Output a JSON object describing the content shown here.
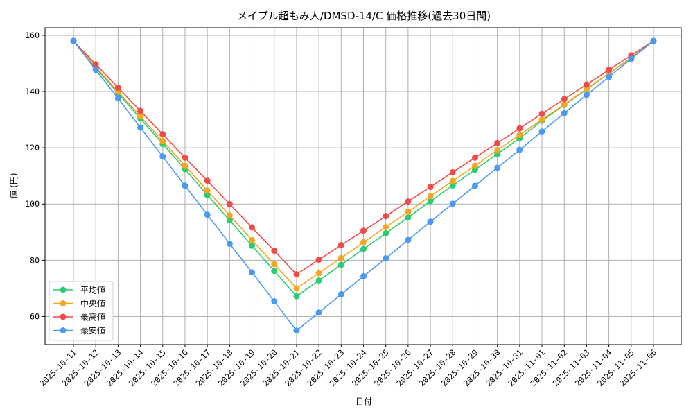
{
  "chart_data": {
    "type": "line",
    "title": "メイプル超もみ人/DMSD-14/C 価格推移(過去30日間)",
    "xlabel": "日付",
    "ylabel": "値 (円)",
    "ylim": [
      50,
      162.7
    ],
    "yticks": [
      60,
      80,
      100,
      120,
      140,
      160
    ],
    "grid": true,
    "legend_position": "lower left",
    "x": [
      "2025-10-11",
      "2025-10-12",
      "2025-10-13",
      "2025-10-14",
      "2025-10-15",
      "2025-10-16",
      "2025-10-17",
      "2025-10-18",
      "2025-10-19",
      "2025-10-20",
      "2025-10-21",
      "2025-10-22",
      "2025-10-23",
      "2025-10-24",
      "2025-10-25",
      "2025-10-26",
      "2025-10-27",
      "2025-10-28",
      "2025-10-29",
      "2025-10-30",
      "2025-10-31",
      "2025-11-01",
      "2025-11-02",
      "2025-11-03",
      "2025-11-04",
      "2025-11-05",
      "2025-11-06"
    ],
    "series": [
      {
        "name": "平均値",
        "color": "#2ecc71",
        "values": [
          158,
          148.4,
          139.4,
          130.4,
          121.4,
          112.4,
          103.2,
          94.2,
          85.2,
          76.2,
          67.2,
          72.8,
          78.4,
          84.0,
          89.6,
          95.2,
          101.0,
          106.6,
          112.2,
          117.8,
          123.4,
          129.6,
          135.2,
          140.8,
          146.4,
          152.0,
          158
        ]
      },
      {
        "name": "中央値",
        "color": "#f5a623",
        "values": [
          158,
          148.8,
          140.0,
          131.2,
          122.4,
          113.6,
          104.8,
          96.0,
          87.2,
          78.6,
          70.0,
          75.4,
          80.8,
          86.4,
          91.8,
          97.2,
          102.8,
          108.2,
          113.6,
          119.2,
          124.6,
          130.0,
          135.4,
          141.0,
          146.4,
          151.8,
          158
        ]
      },
      {
        "name": "最高値",
        "color": "#f04b4b",
        "values": [
          158,
          149.7,
          141.4,
          133.1,
          124.8,
          116.5,
          108.3,
          100.0,
          91.7,
          83.4,
          75.0,
          80.2,
          85.4,
          90.5,
          95.7,
          100.9,
          106.1,
          111.3,
          116.5,
          121.7,
          126.9,
          132.1,
          137.3,
          142.5,
          147.7,
          152.9,
          158
        ]
      },
      {
        "name": "最安値",
        "color": "#4a9af5",
        "values": [
          158,
          147.7,
          137.6,
          127.2,
          116.9,
          106.5,
          96.2,
          85.9,
          75.7,
          65.4,
          55.0,
          61.4,
          67.9,
          74.3,
          80.7,
          87.2,
          93.7,
          100.1,
          106.5,
          112.9,
          119.3,
          125.8,
          132.3,
          138.8,
          145.2,
          151.6,
          158
        ]
      }
    ]
  }
}
